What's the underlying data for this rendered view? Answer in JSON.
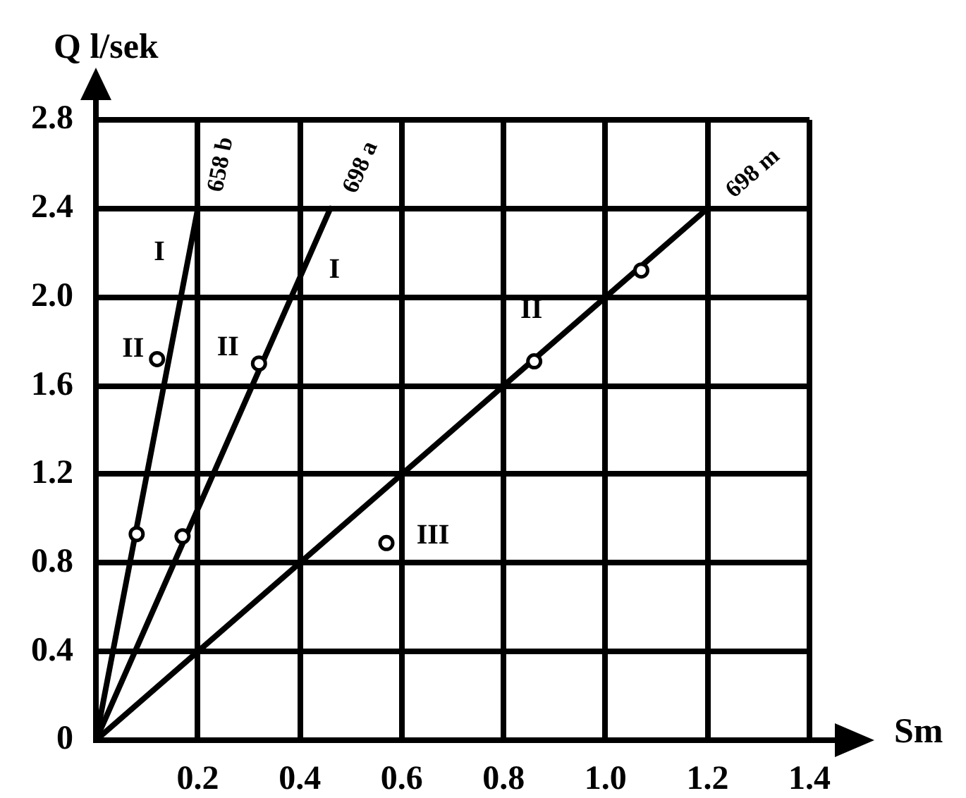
{
  "chart_data": {
    "type": "line",
    "xlabel": "Sm",
    "ylabel": "Q l/sek",
    "series": [
      {
        "name": "658 b",
        "color": "#000000",
        "x": [
          0,
          0.2
        ],
        "values": [
          0,
          2.4
        ]
      },
      {
        "name": "698 a",
        "color": "#000000",
        "x": [
          0,
          0.46
        ],
        "values": [
          0,
          2.4
        ]
      },
      {
        "name": "698 m",
        "color": "#000000",
        "x": [
          0,
          1.2
        ],
        "values": [
          0,
          2.4
        ]
      },
      {
        "type": "scatter",
        "marker": "circle",
        "color": "#000000",
        "x": [
          0.08,
          0.12,
          0.17,
          0.32,
          0.57,
          0.86,
          1.07
        ],
        "values": [
          0.93,
          1.72,
          0.92,
          1.7,
          0.89,
          1.71,
          2.12
        ]
      }
    ],
    "xlim": [
      0,
      1.4
    ],
    "ylim": [
      0,
      2.8
    ],
    "xticks": [
      0.2,
      0.4,
      0.6,
      0.8,
      {
        "value": 1,
        "label": "1.0"
      },
      1.2,
      1.4
    ],
    "yticks": [
      0,
      0.4,
      0.8,
      1.2,
      1.6,
      {
        "value": 2,
        "label": "2.0"
      },
      2.4,
      2.8
    ],
    "annotations": [
      {
        "text": "I",
        "x": 0.18,
        "y": 2.16
      },
      {
        "text": "II",
        "x": 0.12,
        "y": 1.72
      },
      {
        "text": "II",
        "x": 0.32,
        "y": 1.7
      },
      {
        "text": "I",
        "x": 0.41,
        "y": 2.14
      },
      {
        "text": "II",
        "x": 0.86,
        "y": 1.71
      },
      {
        "text": "III",
        "x": 0.57,
        "y": 0.89
      }
    ],
    "grid": true
  }
}
